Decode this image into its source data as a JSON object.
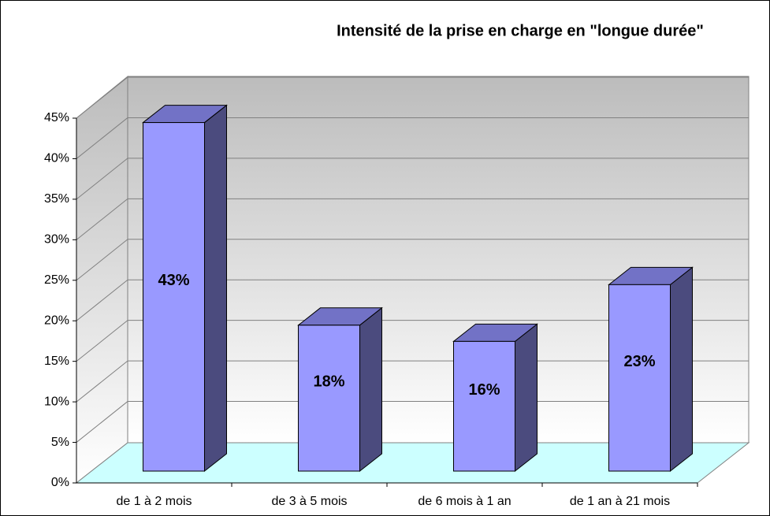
{
  "chart_data": {
    "type": "bar3d",
    "title": "Intensité de la prise en charge en \"longue durée\"",
    "categories": [
      "de 1 à 2 mois",
      "de 3 à 5 mois",
      "de 6 mois à 1 an",
      "de 1 an à 21 mois"
    ],
    "values": [
      43,
      18,
      16,
      23
    ],
    "value_labels": [
      "43%",
      "18%",
      "16%",
      "23%"
    ],
    "color": "#9999ff",
    "ylim": [
      0,
      45
    ],
    "yticks": [
      {
        "value": 0,
        "label": "0%"
      },
      {
        "value": 5,
        "label": "5%"
      },
      {
        "value": 10,
        "label": "10%"
      },
      {
        "value": 15,
        "label": "15%"
      },
      {
        "value": 20,
        "label": "20%"
      },
      {
        "value": 25,
        "label": "25%"
      },
      {
        "value": 30,
        "label": "30%"
      },
      {
        "value": 35,
        "label": "35%"
      },
      {
        "value": 40,
        "label": "40%"
      },
      {
        "value": 45,
        "label": "45%"
      }
    ],
    "grid": true
  }
}
